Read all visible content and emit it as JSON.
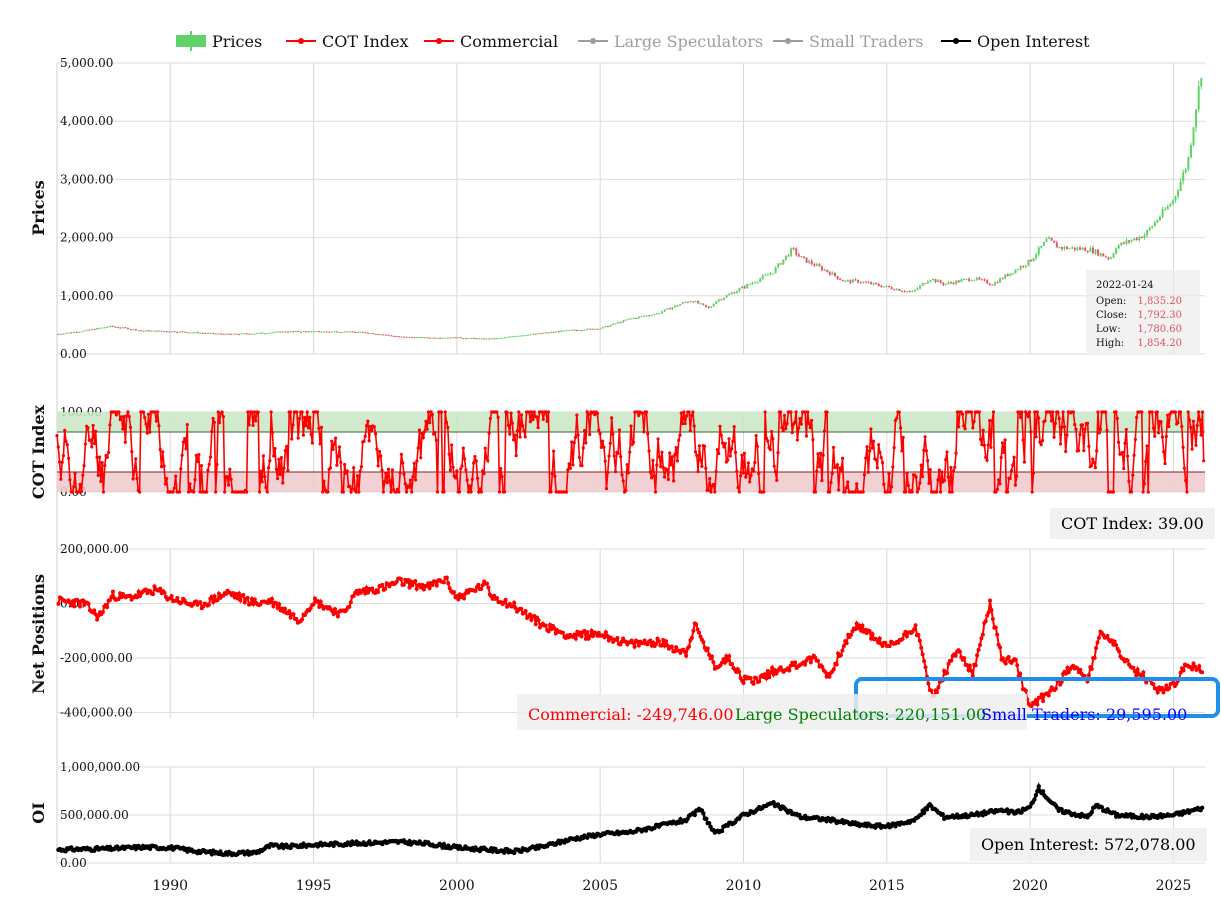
{
  "legend": [
    {
      "label": "Prices",
      "color": "#5fd367",
      "kind": "candle",
      "dim": false
    },
    {
      "label": "COT Index",
      "color": "#ff0000",
      "kind": "line",
      "dim": false
    },
    {
      "label": "Commercial",
      "color": "#ff0000",
      "kind": "line",
      "dim": false
    },
    {
      "label": "Large Speculators",
      "color": "#9e9e9e",
      "kind": "line",
      "dim": true
    },
    {
      "label": "Small Traders",
      "color": "#9e9e9e",
      "kind": "line",
      "dim": true
    },
    {
      "label": "Open Interest",
      "color": "#000000",
      "kind": "line",
      "dim": false
    }
  ],
  "tooltip": {
    "date": "2022-01-24",
    "rows": [
      {
        "label": "Open:",
        "value": "1,835.20"
      },
      {
        "label": "Close:",
        "value": "1,792.30"
      },
      {
        "label": "Low:",
        "value": "1,780.60"
      },
      {
        "label": "High:",
        "value": "1,854.20"
      }
    ]
  },
  "readouts": {
    "cot": "COT Index: 39.00",
    "commercial": "Commercial: -249,746.00",
    "large_specs": "Large Speculators: 220,151.00",
    "small_traders": "Small Traders: 29,595.00",
    "open_interest": "Open Interest: 572,078.00"
  },
  "colors": {
    "up": "#5fd367",
    "down": "#e05a6a",
    "cot": "#ff0000",
    "commercial": "#ff0000",
    "large_specs": "#008000",
    "small_traders": "#0000ff",
    "open_interest": "#000000",
    "highlight": "#1f8fe8",
    "band_high": "#c9e6c6",
    "band_low": "#efc9cb"
  },
  "chart_data": [
    {
      "type": "candlestick",
      "ylabel": "Prices",
      "ylim": [
        0,
        5000
      ],
      "yticks": [
        0,
        1000,
        2000,
        3000,
        4000,
        5000
      ],
      "ytick_labels": [
        "0.00",
        "1,000.00",
        "2,000.00",
        "3,000.00",
        "4,000.00",
        "5,000.00"
      ],
      "xlim": [
        1986.05,
        2026.1
      ],
      "xticks": [
        1990,
        1995,
        2000,
        2005,
        2010,
        2015,
        2020,
        2025
      ],
      "xtick_labels": [
        "1990",
        "1995",
        "2000",
        "2005",
        "2010",
        "2015",
        "2020",
        "2025"
      ],
      "grid": true,
      "x": [
        1986.1,
        1987.0,
        1987.9,
        1988.5,
        1989.0,
        1990.0,
        1991.0,
        1992.0,
        1993.0,
        1994.0,
        1995.0,
        1996.0,
        1996.8,
        1997.5,
        1998.0,
        1999.0,
        1999.7,
        2000.0,
        2001.0,
        2001.5,
        2002.0,
        2003.0,
        2004.0,
        2005.0,
        2006.0,
        2006.5,
        2007.0,
        2008.0,
        2008.2,
        2008.8,
        2009.0,
        2010.0,
        2011.0,
        2011.7,
        2012.0,
        2013.0,
        2013.5,
        2014.0,
        2015.0,
        2015.9,
        2016.5,
        2017.0,
        2018.0,
        2018.7,
        2019.0,
        2020.0,
        2020.6,
        2021.0,
        2022.0,
        2022.1,
        2022.8,
        2023.0,
        2024.0,
        2025.0,
        2025.5,
        2026.0
      ],
      "close": [
        345,
        400,
        475,
        440,
        400,
        390,
        365,
        340,
        355,
        385,
        385,
        385,
        370,
        330,
        295,
        280,
        285,
        280,
        260,
        270,
        310,
        360,
        410,
        440,
        600,
        650,
        700,
        900,
        920,
        780,
        900,
        1150,
        1400,
        1800,
        1650,
        1400,
        1250,
        1250,
        1150,
        1060,
        1300,
        1200,
        1300,
        1200,
        1300,
        1600,
        1970,
        1830,
        1800,
        1792,
        1640,
        1850,
        2050,
        2650,
        3300,
        4950
      ],
      "tooltip_date": "2022-01-24"
    },
    {
      "type": "line",
      "ylabel": "COT Index",
      "ylim": [
        0,
        100
      ],
      "yticks": [
        0,
        100
      ],
      "ytick_labels": [
        "0.00",
        "100.00"
      ],
      "bands": [
        {
          "from": 75,
          "to": 100,
          "zone": "high"
        },
        {
          "from": 0,
          "to": 25,
          "zone": "low"
        }
      ],
      "series": [
        {
          "name": "COT Index",
          "last_value": 39
        }
      ]
    },
    {
      "type": "line",
      "ylabel": "Net Positions",
      "ylim": [
        -420000,
        200000
      ],
      "yticks": [
        -400000,
        -200000,
        0,
        200000
      ],
      "ytick_labels": [
        "-400,000.00",
        "-200,000.00",
        "0.00",
        "200,000.00"
      ],
      "x": [
        1986.1,
        1987.0,
        1987.5,
        1988.0,
        1988.5,
        1989.5,
        1990.0,
        1991.0,
        1992.0,
        1993.0,
        1993.5,
        1994.5,
        1995.0,
        1996.0,
        1996.5,
        1997.5,
        1998.0,
        1999.0,
        1999.6,
        2000.0,
        2001.0,
        2001.2,
        2002.0,
        2003.0,
        2004.0,
        2005.0,
        2006.0,
        2007.0,
        2008.0,
        2008.3,
        2009.0,
        2009.5,
        2010.0,
        2010.5,
        2011.0,
        2012.0,
        2012.5,
        2013.0,
        2013.5,
        2014.0,
        2015.0,
        2015.5,
        2016.0,
        2016.6,
        2017.0,
        2017.5,
        2018.0,
        2018.6,
        2019.0,
        2019.5,
        2020.0,
        2020.5,
        2021.0,
        2021.5,
        2022.0,
        2022.5,
        2023.0,
        2023.5,
        2024.0,
        2024.5,
        2025.0,
        2025.5,
        2026.0
      ],
      "series": [
        {
          "name": "Commercial",
          "values": [
            10000,
            0,
            -50000,
            30000,
            20000,
            50000,
            20000,
            -10000,
            40000,
            0,
            10000,
            -60000,
            10000,
            -40000,
            40000,
            60000,
            80000,
            60000,
            90000,
            20000,
            70000,
            30000,
            -10000,
            -80000,
            -120000,
            -110000,
            -150000,
            -140000,
            -180000,
            -80000,
            -230000,
            -200000,
            -280000,
            -280000,
            -250000,
            -220000,
            -200000,
            -270000,
            -150000,
            -80000,
            -160000,
            -130000,
            -80000,
            -350000,
            -260000,
            -170000,
            -260000,
            0,
            -200000,
            -220000,
            -380000,
            -340000,
            -290000,
            -220000,
            -280000,
            -100000,
            -160000,
            -240000,
            -270000,
            -320000,
            -300000,
            -220000,
            -249746
          ]
        },
        {
          "name": "Large Speculators",
          "last_value": 220151
        },
        {
          "name": "Small Traders",
          "last_value": 29595
        }
      ],
      "highlight_box": true
    },
    {
      "type": "line",
      "ylabel": "OI",
      "ylim": [
        0,
        1000000
      ],
      "yticks": [
        0,
        500000,
        1000000
      ],
      "ytick_labels": [
        "0.00",
        "500,000.00",
        "1,000,000.00"
      ],
      "x": [
        1986.1,
        1988.0,
        1989.0,
        1990.0,
        1991.0,
        1992.0,
        1993.0,
        1993.5,
        1994.0,
        1995.0,
        1996.0,
        1997.0,
        1998.0,
        1999.0,
        2000.0,
        2001.0,
        2002.0,
        2003.0,
        2004.0,
        2005.0,
        2006.0,
        2007.0,
        2008.0,
        2008.5,
        2009.0,
        2010.0,
        2011.0,
        2012.0,
        2013.0,
        2014.0,
        2015.0,
        2016.0,
        2016.5,
        2017.0,
        2018.0,
        2019.0,
        2019.5,
        2020.0,
        2020.3,
        2021.0,
        2022.0,
        2022.3,
        2023.0,
        2024.0,
        2025.0,
        2026.0
      ],
      "series": [
        {
          "name": "Open Interest",
          "values": [
            140000,
            150000,
            165000,
            160000,
            120000,
            100000,
            110000,
            180000,
            170000,
            190000,
            200000,
            210000,
            220000,
            200000,
            160000,
            140000,
            120000,
            170000,
            250000,
            300000,
            320000,
            380000,
            450000,
            560000,
            300000,
            500000,
            620000,
            480000,
            450000,
            400000,
            380000,
            450000,
            600000,
            480000,
            500000,
            550000,
            520000,
            580000,
            780000,
            550000,
            480000,
            600000,
            500000,
            480000,
            500000,
            572078
          ]
        }
      ]
    }
  ]
}
